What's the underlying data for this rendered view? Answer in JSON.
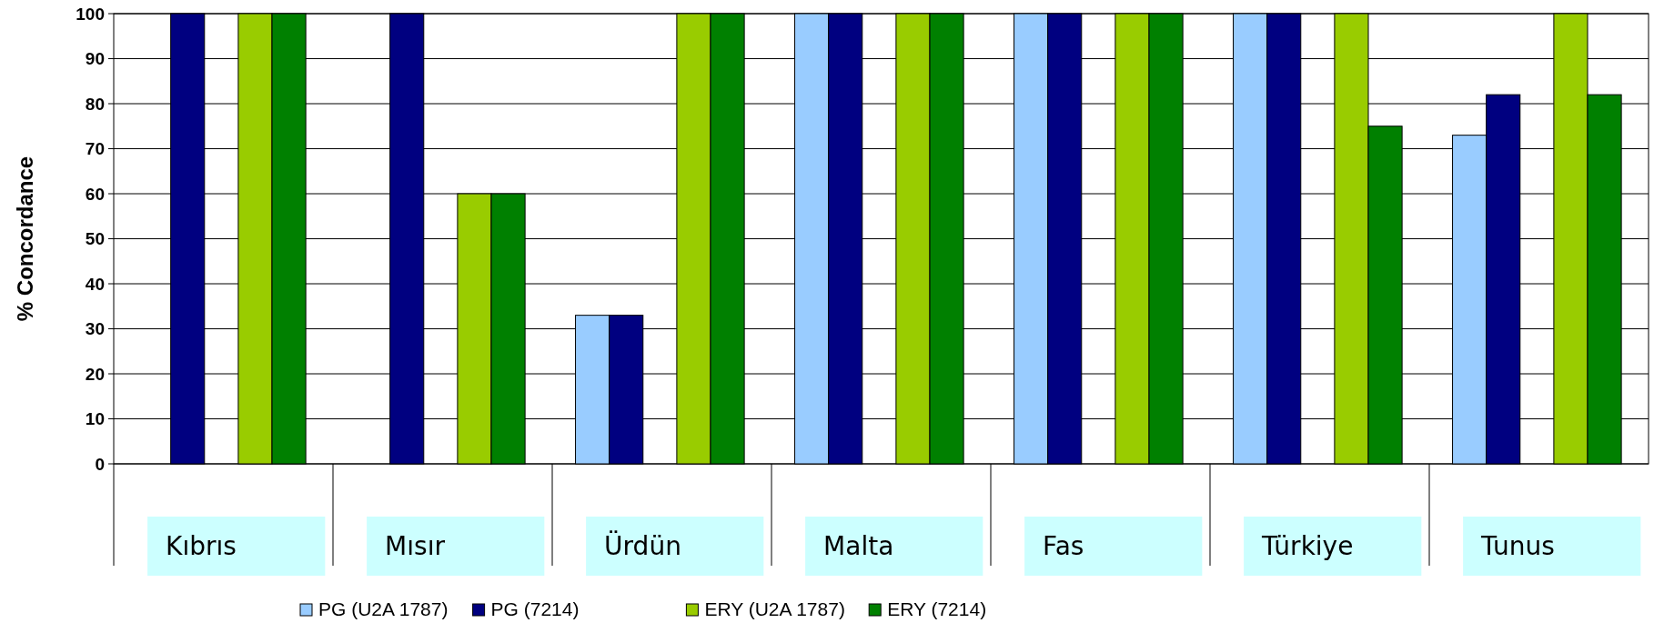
{
  "chart_data": {
    "type": "bar",
    "ylabel": "% Concordance",
    "categories": [
      "Kıbrıs",
      "Mısır",
      "Ürdün",
      "Malta",
      "Fas",
      "Türkiye",
      "Tunus"
    ],
    "series": [
      {
        "name": "PG (U2A 1787)",
        "color": "#99ccff",
        "values": [
          null,
          null,
          33,
          100,
          100,
          100,
          73
        ]
      },
      {
        "name": "PG (7214)",
        "color": "#000080",
        "values": [
          100,
          100,
          33,
          100,
          100,
          100,
          82
        ]
      },
      {
        "name": "ERY (U2A 1787)",
        "color": "#99cc00",
        "values": [
          100,
          60,
          100,
          100,
          100,
          100,
          100
        ]
      },
      {
        "name": "ERY (7214)",
        "color": "#008000",
        "values": [
          100,
          60,
          100,
          100,
          100,
          75,
          82
        ]
      }
    ],
    "ylim": [
      0,
      100
    ],
    "yticks": [
      0,
      10,
      20,
      30,
      40,
      50,
      60,
      70,
      80,
      90,
      100
    ],
    "grid": "y",
    "legend": "bottom"
  }
}
